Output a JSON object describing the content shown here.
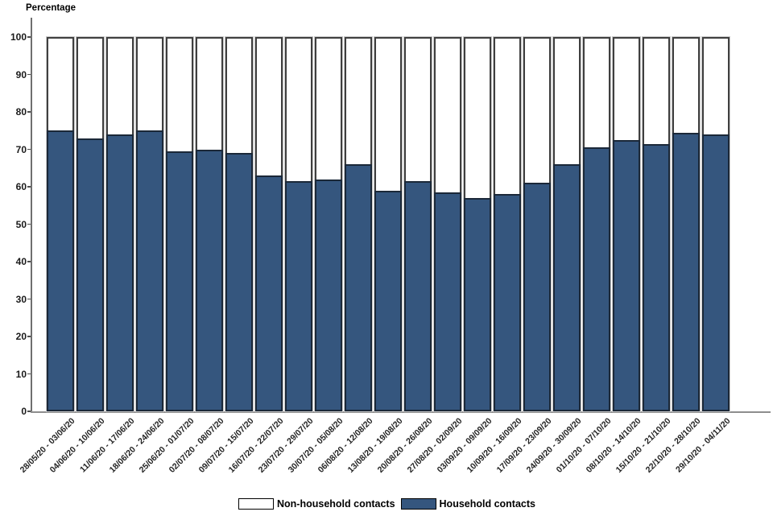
{
  "chart_data": {
    "type": "bar",
    "stacked": true,
    "ylabel": "Percentage",
    "xlabel": "",
    "ylim": [
      0,
      100
    ],
    "yticks": [
      0,
      10,
      20,
      30,
      40,
      50,
      60,
      70,
      80,
      90,
      100
    ],
    "grid": false,
    "legend_position": "bottom",
    "categories": [
      "28/05/20 - 03/06/20",
      "04/06/20 - 10/06/20",
      "11/06/20 - 17/06/20",
      "18/06/20 - 24/06/20",
      "25/06/20 - 01/07/20",
      "02/07/20 - 08/07/20",
      "09/07/20 - 15/07/20",
      "16/07/20 - 22/07/20",
      "23/07/20 - 29/07/20",
      "30/07/20 - 05/08/20",
      "06/08/20 - 12/08/20",
      "13/08/20 - 19/08/20",
      "20/08/20 - 26/08/20",
      "27/08/20 - 02/09/20",
      "03/09/20 - 09/09/20",
      "10/09/20 - 16/09/20",
      "17/09/20 - 23/09/20",
      "24/09/20 - 30/09/20",
      "01/10/20 - 07/10/20",
      "08/10/20 - 14/10/20",
      "15/10/20 - 21/10/20",
      "22/10/20 - 28/10/20",
      "29/10/20 - 04/11/20"
    ],
    "series": [
      {
        "name": "Household contacts",
        "color": "#35567E",
        "values": [
          75,
          73,
          74,
          75,
          69.5,
          70,
          69,
          63,
          61.5,
          62,
          66,
          59,
          61.5,
          58.5,
          57,
          58,
          61,
          66,
          70.5,
          72.5,
          71.5,
          74.5,
          74
        ]
      },
      {
        "name": "Non-household contacts",
        "color": "#FFFFFF",
        "values": [
          25,
          27,
          26,
          25,
          30.5,
          30,
          31,
          37,
          38.5,
          38,
          34,
          41,
          38.5,
          41.5,
          43,
          42,
          39,
          34,
          29.5,
          27.5,
          28.5,
          25.5,
          26
        ]
      }
    ]
  },
  "legend": {
    "items": [
      {
        "label": "Non-household contacts",
        "color": "#FFFFFF"
      },
      {
        "label": "Household contacts",
        "color": "#35567E"
      }
    ]
  }
}
